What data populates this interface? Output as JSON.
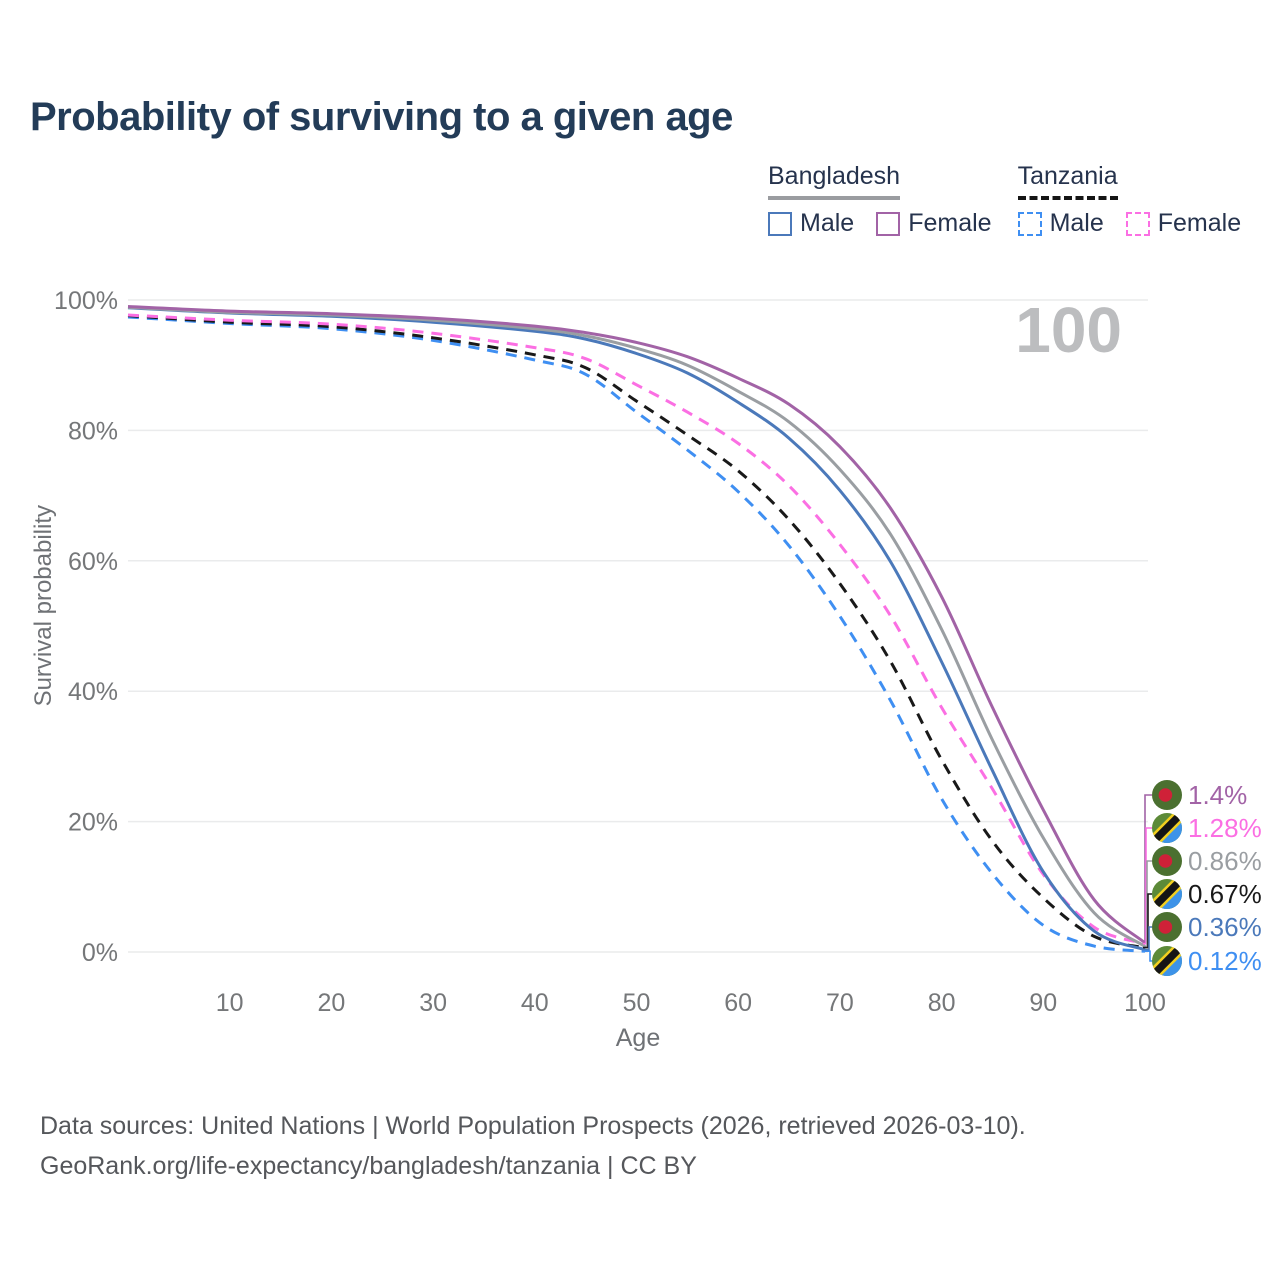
{
  "title": "Probability of surviving to a given age",
  "legend": {
    "groups": [
      {
        "country": "Bangladesh",
        "underline_style": "solid",
        "items": [
          {
            "label": "Male",
            "series_ref": 2
          },
          {
            "label": "Female",
            "series_ref": 0
          }
        ]
      },
      {
        "country": "Tanzania",
        "underline_style": "dashed",
        "items": [
          {
            "label": "Male",
            "series_ref": 5
          },
          {
            "label": "Female",
            "series_ref": 3
          }
        ]
      }
    ]
  },
  "watermark": "100",
  "axes": {
    "y_title": "Survival probability",
    "x_title": "Age"
  },
  "footer": {
    "line1": "Data sources: United Nations | World Population Prospects (2026, retrieved 2026-03-10).",
    "line2": "GeoRank.org/life-expectancy/bangladesh/tanzania | CC BY"
  },
  "colors": {
    "grid": "#eaebec",
    "axis_text": "#757779",
    "title": "#233c58",
    "watermark": "#bcbdbf",
    "footer_text": "#55575b",
    "legend_text": "#26334d",
    "bangladesh_underline": "#9a9ca0",
    "tanzania_underline": "#151515"
  },
  "chart_data": {
    "type": "line",
    "title": "Probability of surviving to a given age",
    "xlabel": "Age",
    "ylabel": "Survival probability",
    "xlim": [
      0,
      100
    ],
    "ylim": [
      0,
      100
    ],
    "grid": "horizontal",
    "legend_position": "top-right",
    "x": [
      0,
      10,
      20,
      30,
      40,
      45,
      50,
      55,
      60,
      65,
      70,
      75,
      80,
      85,
      90,
      95,
      100
    ],
    "y_ticks": [
      {
        "value": 0,
        "label": "0%"
      },
      {
        "value": 20,
        "label": "20%"
      },
      {
        "value": 40,
        "label": "40%"
      },
      {
        "value": 60,
        "label": "60%"
      },
      {
        "value": 80,
        "label": "80%"
      },
      {
        "value": 100,
        "label": "100%"
      }
    ],
    "x_ticks": [
      {
        "value": 10,
        "label": "10"
      },
      {
        "value": 20,
        "label": "20"
      },
      {
        "value": 30,
        "label": "30"
      },
      {
        "value": 40,
        "label": "40"
      },
      {
        "value": 50,
        "label": "50"
      },
      {
        "value": 60,
        "label": "60"
      },
      {
        "value": 70,
        "label": "70"
      },
      {
        "value": 80,
        "label": "80"
      },
      {
        "value": 90,
        "label": "90"
      },
      {
        "value": 100,
        "label": "100"
      }
    ],
    "series": [
      {
        "name": "Bangladesh Female",
        "country": "Bangladesh",
        "sex": "Female",
        "flag": "bangladesh",
        "style": "solid",
        "color": "#a263a6",
        "end_label": "1.4%",
        "values": [
          99.0,
          98.3,
          97.9,
          97.2,
          96.0,
          95.0,
          93.5,
          91.3,
          88.0,
          84.0,
          77.5,
          68.0,
          54.5,
          37.5,
          21.8,
          8.0,
          1.4
        ]
      },
      {
        "name": "Bangladesh",
        "country": "Bangladesh",
        "sex": "Both",
        "flag": "bangladesh",
        "style": "solid",
        "color": "#9a9ea2",
        "end_label": "0.86%",
        "values": [
          98.9,
          98.1,
          97.7,
          96.9,
          95.6,
          94.5,
          92.6,
          90.0,
          86.0,
          81.3,
          74.0,
          64.0,
          49.5,
          32.5,
          17.5,
          6.0,
          0.86
        ]
      },
      {
        "name": "Bangladesh Male",
        "country": "Bangladesh",
        "sex": "Male",
        "flag": "bangladesh",
        "style": "solid",
        "color": "#4b79ba",
        "end_label": "0.36%",
        "values": [
          98.8,
          98.0,
          97.5,
          96.6,
          95.2,
          94.0,
          91.8,
          88.8,
          84.3,
          78.8,
          70.8,
          59.8,
          44.5,
          27.8,
          12.3,
          3.2,
          0.36
        ]
      },
      {
        "name": "Tanzania Female",
        "country": "Tanzania",
        "sex": "Female",
        "flag": "tanzania",
        "style": "dashed",
        "color": "#fb6fe3",
        "end_label": "1.28%",
        "values": [
          97.7,
          96.9,
          96.3,
          94.9,
          92.7,
          91.0,
          87.0,
          82.8,
          78.0,
          71.5,
          62.5,
          51.5,
          37.5,
          25.0,
          11.9,
          3.8,
          1.28
        ]
      },
      {
        "name": "Tanzania",
        "country": "Tanzania",
        "sex": "Both",
        "flag": "tanzania",
        "style": "dashed",
        "color": "#191919",
        "end_label": "0.67%",
        "values": [
          97.6,
          96.6,
          95.9,
          94.2,
          91.6,
          89.6,
          84.5,
          79.3,
          73.8,
          66.3,
          56.5,
          44.5,
          29.5,
          17.0,
          8.3,
          2.4,
          0.67
        ]
      },
      {
        "name": "Tanzania Male",
        "country": "Tanzania",
        "sex": "Male",
        "flag": "tanzania",
        "style": "dashed",
        "color": "#3f8ff2",
        "end_label": "0.12%",
        "values": [
          97.4,
          96.4,
          95.6,
          93.8,
          90.8,
          88.6,
          82.8,
          77.0,
          70.6,
          62.3,
          51.5,
          38.5,
          23.5,
          12.0,
          4.1,
          0.9,
          0.12
        ]
      }
    ]
  }
}
